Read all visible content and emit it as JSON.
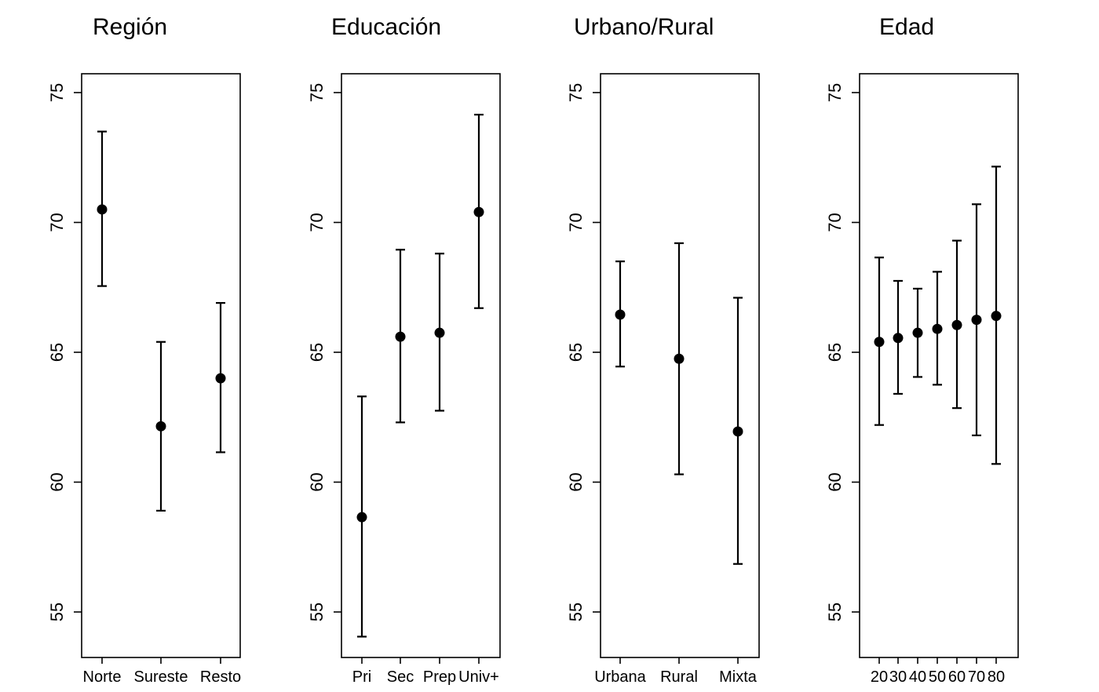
{
  "chart_data": [
    {
      "type": "scatter",
      "title": "Región",
      "categories": [
        "Norte",
        "Sureste",
        "Resto"
      ],
      "estimates": [
        70.5,
        62.15,
        64.0
      ],
      "ci_lower": [
        67.55,
        58.9,
        61.15
      ],
      "ci_upper": [
        73.5,
        65.4,
        66.9
      ],
      "yticks": [
        55,
        60,
        65,
        70,
        75
      ],
      "ylim": [
        53.3,
        75.8
      ]
    },
    {
      "type": "scatter",
      "title": "Educación",
      "categories": [
        "Pri",
        "Sec",
        "Prep",
        "Univ+"
      ],
      "estimates": [
        58.65,
        65.6,
        65.75,
        70.4
      ],
      "ci_lower": [
        54.05,
        62.3,
        62.75,
        66.7
      ],
      "ci_upper": [
        63.3,
        68.95,
        68.8,
        74.15
      ],
      "yticks": [
        55,
        60,
        65,
        70,
        75
      ],
      "ylim": [
        53.3,
        75.8
      ]
    },
    {
      "type": "scatter",
      "title": "Urbano/Rural",
      "categories": [
        "Urbana",
        "Rural",
        "Mixta"
      ],
      "estimates": [
        66.45,
        64.75,
        61.95
      ],
      "ci_lower": [
        64.45,
        60.3,
        56.85
      ],
      "ci_upper": [
        68.5,
        69.2,
        67.1
      ],
      "yticks": [
        55,
        60,
        65,
        70,
        75
      ],
      "ylim": [
        53.3,
        75.8
      ]
    },
    {
      "type": "scatter",
      "title": "Edad",
      "categories": [
        "20",
        "30",
        "40",
        "50",
        "60",
        "70",
        "80"
      ],
      "estimates": [
        65.4,
        65.55,
        65.75,
        65.9,
        66.05,
        66.25,
        66.4
      ],
      "ci_lower": [
        62.2,
        63.4,
        64.05,
        63.75,
        62.85,
        61.8,
        60.7
      ],
      "ci_upper": [
        68.65,
        67.75,
        67.45,
        68.1,
        69.3,
        70.7,
        72.15
      ],
      "yticks": [
        55,
        60,
        65,
        70,
        75
      ],
      "ylim": [
        53.3,
        75.8
      ]
    }
  ]
}
